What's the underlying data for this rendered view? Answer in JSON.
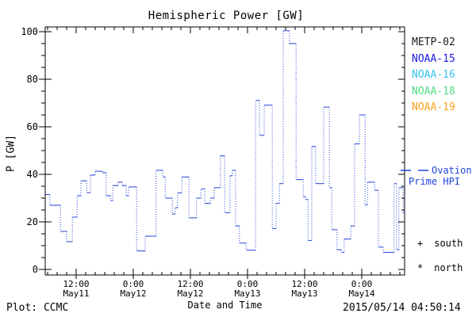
{
  "chart_data": {
    "type": "line",
    "subtype": "step",
    "title": "Hemispheric Power [GW]",
    "xlabel": "Date and Time",
    "ylabel": "P [GW]",
    "ylim": [
      0,
      100
    ],
    "yticks": [
      0,
      20,
      40,
      60,
      80,
      100
    ],
    "y_minor_step": 5,
    "x_hours_domain": [
      5.5,
      81
    ],
    "x_minor_step_hours": 2,
    "grid": "off",
    "legend_position": "right-outside",
    "xticks": [
      {
        "h": 12,
        "time": "12:00",
        "date": "May11"
      },
      {
        "h": 24,
        "time": "0:00",
        "date": "May12"
      },
      {
        "h": 36,
        "time": "12:00",
        "date": "May12"
      },
      {
        "h": 48,
        "time": "0:00",
        "date": "May13"
      },
      {
        "h": 60,
        "time": "12:00",
        "date": "May13"
      },
      {
        "h": 72,
        "time": "0:00",
        "date": "May14"
      }
    ],
    "series": [
      {
        "name": "Ovation Prime HPI",
        "color": "#2143dc",
        "line_style": "solid horizontal steps with dotted vertical risers",
        "end_h": 81,
        "points_h_gw": [
          [
            5.5,
            31.5
          ],
          [
            6.5,
            27
          ],
          [
            8.7,
            16
          ],
          [
            10.0,
            11.7
          ],
          [
            11.2,
            22
          ],
          [
            12.2,
            31
          ],
          [
            13.0,
            37.3
          ],
          [
            14.2,
            32.3
          ],
          [
            15.0,
            39.7
          ],
          [
            16.0,
            41.3
          ],
          [
            17.5,
            40.7
          ],
          [
            18.3,
            31
          ],
          [
            19.2,
            29
          ],
          [
            19.7,
            35.3
          ],
          [
            20.8,
            36.7
          ],
          [
            21.7,
            35.3
          ],
          [
            22.5,
            31
          ],
          [
            23.0,
            34.7
          ],
          [
            24.7,
            7.8
          ],
          [
            26.5,
            14
          ],
          [
            28.8,
            41.7
          ],
          [
            30.2,
            38.9
          ],
          [
            30.7,
            30
          ],
          [
            32.2,
            23.3
          ],
          [
            32.8,
            26
          ],
          [
            33.3,
            32.2
          ],
          [
            34.2,
            38.9
          ],
          [
            35.7,
            21.7
          ],
          [
            37.3,
            30
          ],
          [
            38.2,
            33.9
          ],
          [
            39.0,
            27.8
          ],
          [
            40.2,
            30
          ],
          [
            41.0,
            34.4
          ],
          [
            42.3,
            47.8
          ],
          [
            43.2,
            23.9
          ],
          [
            44.3,
            39.4
          ],
          [
            44.8,
            41.7
          ],
          [
            45.5,
            18.3
          ],
          [
            46.3,
            11.1
          ],
          [
            47.7,
            8.1
          ],
          [
            49.7,
            71.1
          ],
          [
            50.5,
            56.4
          ],
          [
            51.5,
            69.1
          ],
          [
            53.2,
            17.2
          ],
          [
            54.0,
            27.8
          ],
          [
            54.7,
            36.1
          ],
          [
            55.5,
            100.4
          ],
          [
            56.8,
            95
          ],
          [
            58.2,
            37.8
          ],
          [
            59.7,
            30.6
          ],
          [
            60.2,
            29.4
          ],
          [
            60.7,
            12.2
          ],
          [
            61.5,
            51.7
          ],
          [
            62.3,
            36.1
          ],
          [
            64.0,
            68.3
          ],
          [
            65.2,
            34.4
          ],
          [
            65.7,
            16.7
          ],
          [
            66.8,
            8.3
          ],
          [
            67.7,
            7.2
          ],
          [
            68.3,
            12.8
          ],
          [
            69.7,
            18.3
          ],
          [
            70.5,
            52.8
          ],
          [
            71.5,
            65
          ],
          [
            72.7,
            27.2
          ],
          [
            73.2,
            36.7
          ],
          [
            74.7,
            33.3
          ],
          [
            75.5,
            9.4
          ],
          [
            76.5,
            7.2
          ],
          [
            78.8,
            36.1
          ],
          [
            79.3,
            8.3
          ],
          [
            79.8,
            34.4
          ],
          [
            80.7,
            23.9
          ]
        ]
      }
    ]
  },
  "legend": {
    "satellites": [
      {
        "label": "METP-02",
        "color": "#1a1a1a"
      },
      {
        "label": "NOAA-15",
        "color": "#1c1ce0"
      },
      {
        "label": "NOAA-16",
        "color": "#35c2f2"
      },
      {
        "label": "NOAA-18",
        "color": "#4fdf85"
      },
      {
        "label": "NOAA-19",
        "color": "#ffa21f"
      }
    ],
    "ovation": {
      "line1": "Ovation",
      "line2": "Prime HPI",
      "color": "#2143dc"
    },
    "markers": [
      {
        "symbol": "+",
        "label": "south"
      },
      {
        "symbol": "*",
        "label": "north"
      }
    ]
  },
  "footer": {
    "credit": "Plot: CCMC",
    "timestamp": "2015/05/14 04:50:14"
  }
}
